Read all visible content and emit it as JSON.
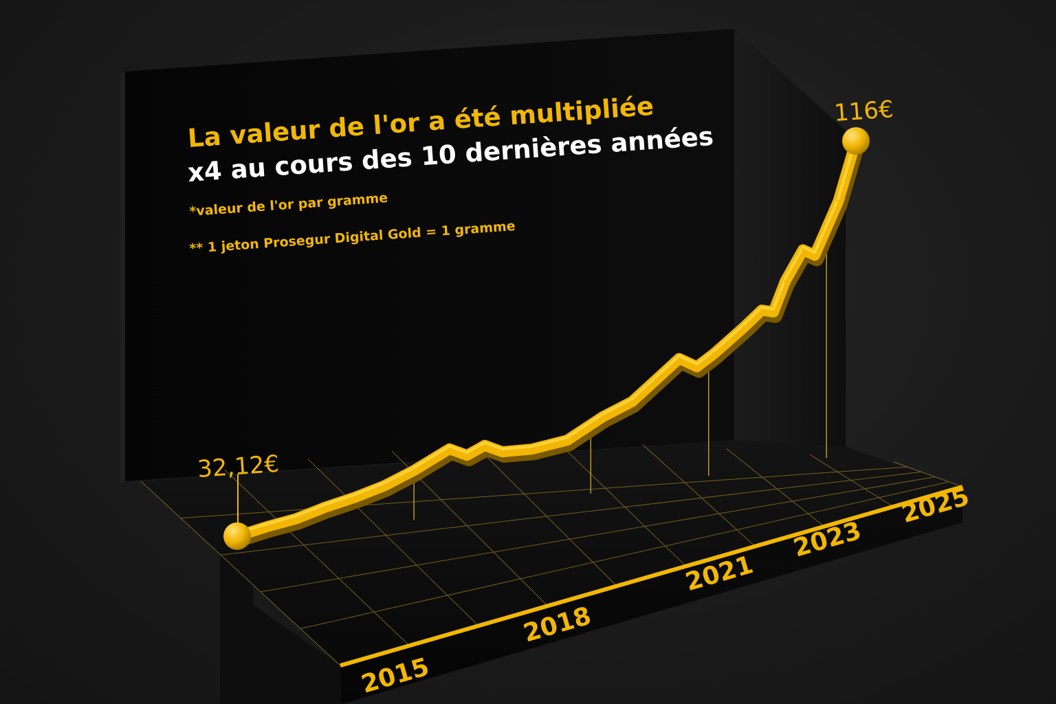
{
  "title": {
    "line1": "La valeur de l'or a été multipliée",
    "line2": "x4 au cours des 10 dernières années"
  },
  "notes": {
    "note1": "*valeur de l'or par gramme",
    "note2": "** 1 jeton Prosegur Digital Gold = 1 gramme"
  },
  "colors": {
    "accent": "#f2b705",
    "title_white": "#ffffff",
    "panel": "#0b0b0b",
    "grid": "#c9a227"
  },
  "chart_data": {
    "type": "line",
    "title": "La valeur de l'or a été multipliée x4 au cours des 10 dernières années",
    "xlabel": "",
    "ylabel": "",
    "unit": "€",
    "ticks": [
      "2015",
      "2018",
      "2021",
      "2023",
      "2025"
    ],
    "start_label": "32,12€",
    "end_label": "116€",
    "series": [
      {
        "values": [
          {
            "x": 2015.0,
            "y": 32.12
          },
          {
            "x": 2015.5,
            "y": 33.5
          },
          {
            "x": 2016.0,
            "y": 34.5
          },
          {
            "x": 2016.5,
            "y": 36.5
          },
          {
            "x": 2017.0,
            "y": 38.0
          },
          {
            "x": 2017.5,
            "y": 40.0
          },
          {
            "x": 2018.0,
            "y": 43.0
          },
          {
            "x": 2018.6,
            "y": 47.5
          },
          {
            "x": 2018.9,
            "y": 45.0
          },
          {
            "x": 2019.2,
            "y": 47.0
          },
          {
            "x": 2019.5,
            "y": 44.5
          },
          {
            "x": 2020.0,
            "y": 44.0
          },
          {
            "x": 2020.6,
            "y": 45.0
          },
          {
            "x": 2021.2,
            "y": 50.0
          },
          {
            "x": 2021.7,
            "y": 53.0
          },
          {
            "x": 2022.1,
            "y": 58.0
          },
          {
            "x": 2022.5,
            "y": 63.0
          },
          {
            "x": 2022.8,
            "y": 60.0
          },
          {
            "x": 2023.1,
            "y": 63.0
          },
          {
            "x": 2023.6,
            "y": 69.0
          },
          {
            "x": 2023.9,
            "y": 73.0
          },
          {
            "x": 2024.1,
            "y": 72.0
          },
          {
            "x": 2024.3,
            "y": 80.0
          },
          {
            "x": 2024.6,
            "y": 88.0
          },
          {
            "x": 2024.8,
            "y": 86.0
          },
          {
            "x": 2025.2,
            "y": 100.0
          },
          {
            "x": 2025.5,
            "y": 116.0
          }
        ]
      }
    ],
    "xlim": [
      2015,
      2025.5
    ],
    "ylim": [
      30,
      116
    ],
    "grid": true,
    "legend": "none"
  }
}
